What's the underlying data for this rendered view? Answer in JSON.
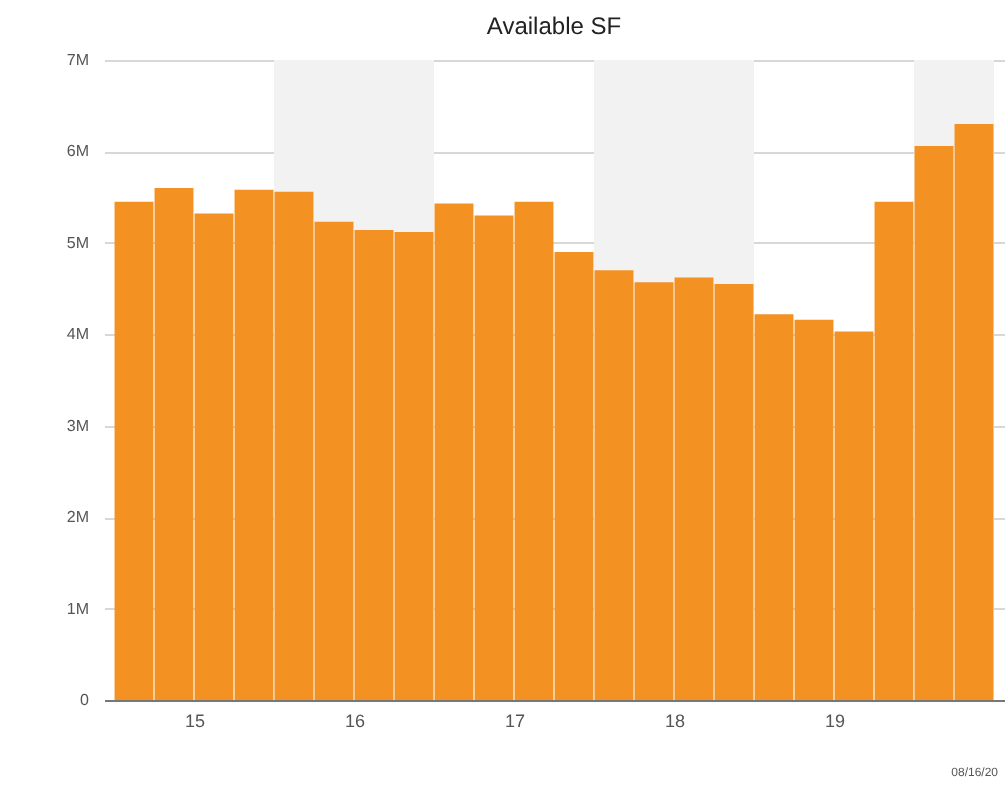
{
  "chart_data": {
    "type": "bar",
    "title": "Available SF",
    "x": [
      15.125,
      15.375,
      15.625,
      15.875,
      16.125,
      16.375,
      16.625,
      16.875,
      17.125,
      17.375,
      17.625,
      17.875,
      18.125,
      18.375,
      18.625,
      18.875,
      19.125,
      19.375,
      19.625,
      19.875,
      20.125,
      20.375
    ],
    "values": [
      5450000,
      5600000,
      5320000,
      5580000,
      5560000,
      5230000,
      5140000,
      5120000,
      5430000,
      5300000,
      5450000,
      4900000,
      4700000,
      4570000,
      4620000,
      4550000,
      4220000,
      4160000,
      4030000,
      5450000,
      6060000,
      6300000
    ],
    "color": "#f39123",
    "xlim": [
      15,
      20.5
    ],
    "xticks": [
      {
        "value": 15.5,
        "label": "15"
      },
      {
        "value": 16.5,
        "label": "16"
      },
      {
        "value": 17.5,
        "label": "17"
      },
      {
        "value": 18.5,
        "label": "18"
      },
      {
        "value": 19.5,
        "label": "19"
      }
    ],
    "ylim": [
      0,
      7000000
    ],
    "yticks": [
      0,
      {
        "value": 1000000,
        "label": "1M"
      },
      {
        "value": 2000000,
        "label": "2M"
      },
      {
        "value": 3000000,
        "label": "3M"
      },
      {
        "value": 4000000,
        "label": "4M"
      },
      {
        "value": 5000000,
        "label": "5M"
      },
      {
        "value": 6000000,
        "label": "6M"
      },
      {
        "value": 7000000,
        "label": "7M"
      }
    ],
    "bands": [
      {
        "axis": "x",
        "from": 16,
        "to": 17,
        "color": "#f2f2f2"
      },
      {
        "axis": "x",
        "from": 18,
        "to": 19,
        "color": "#f2f2f2"
      },
      {
        "axis": "x",
        "from": 20,
        "to": 20.5,
        "color": "#f2f2f2"
      }
    ],
    "grid": "y",
    "annotations": [
      "08/16/20"
    ]
  }
}
